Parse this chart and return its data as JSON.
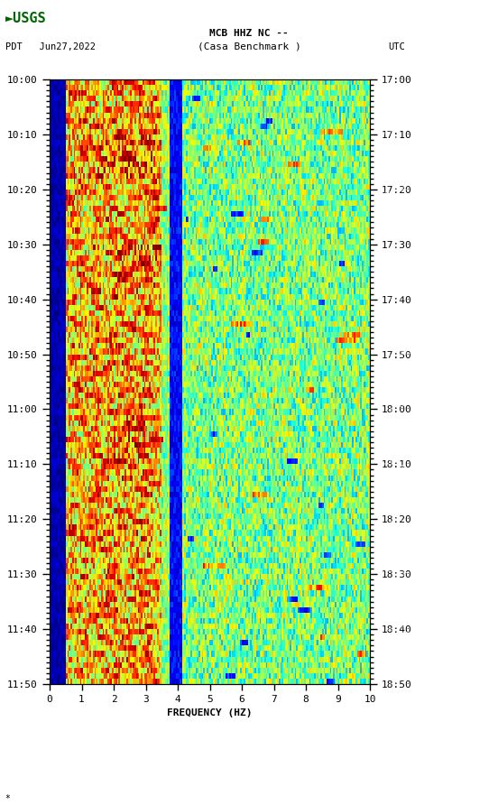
{
  "title_line1": "MCB HHZ NC --",
  "title_line2": "(Casa Benchmark )",
  "left_label": "PDT   Jun27,2022",
  "right_label": "UTC",
  "xlabel": "FREQUENCY (HZ)",
  "freq_min": 0,
  "freq_max": 10,
  "left_ticks": [
    "10:00",
    "10:10",
    "10:20",
    "10:30",
    "10:40",
    "10:50",
    "11:00",
    "11:10",
    "11:20",
    "11:30",
    "11:40",
    "11:50"
  ],
  "right_ticks": [
    "17:00",
    "17:10",
    "17:20",
    "17:30",
    "17:40",
    "17:50",
    "18:00",
    "18:10",
    "18:20",
    "18:30",
    "18:40",
    "18:50"
  ],
  "colormap": "jet",
  "fig_width": 5.52,
  "fig_height": 8.92,
  "dpi": 100,
  "bg_color": "#ffffff",
  "seed": 42,
  "n_time": 110,
  "n_freq": 200
}
